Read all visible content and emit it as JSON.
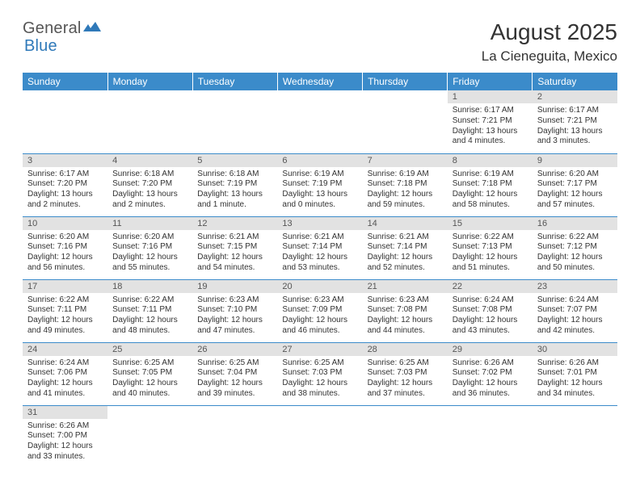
{
  "logo": {
    "text1": "General",
    "text2": "Blue"
  },
  "header": {
    "title": "August 2025",
    "location": "La Cieneguita, Mexico"
  },
  "colors": {
    "header_bg": "#3b8bca",
    "header_text": "#ffffff",
    "daynum_bg": "#e2e2e2",
    "border": "#3b8bca",
    "body_text": "#333333"
  },
  "style": {
    "title_fontsize": 28,
    "location_fontsize": 17,
    "header_fontsize": 12,
    "daynum_fontsize": 11,
    "body_fontsize": 10
  },
  "days_of_week": [
    "Sunday",
    "Monday",
    "Tuesday",
    "Wednesday",
    "Thursday",
    "Friday",
    "Saturday"
  ],
  "weeks": [
    [
      {
        "empty": true
      },
      {
        "empty": true
      },
      {
        "empty": true
      },
      {
        "empty": true
      },
      {
        "empty": true
      },
      {
        "num": "1",
        "sunrise": "Sunrise: 6:17 AM",
        "sunset": "Sunset: 7:21 PM",
        "daylight": "Daylight: 13 hours and 4 minutes."
      },
      {
        "num": "2",
        "sunrise": "Sunrise: 6:17 AM",
        "sunset": "Sunset: 7:21 PM",
        "daylight": "Daylight: 13 hours and 3 minutes."
      }
    ],
    [
      {
        "num": "3",
        "sunrise": "Sunrise: 6:17 AM",
        "sunset": "Sunset: 7:20 PM",
        "daylight": "Daylight: 13 hours and 2 minutes."
      },
      {
        "num": "4",
        "sunrise": "Sunrise: 6:18 AM",
        "sunset": "Sunset: 7:20 PM",
        "daylight": "Daylight: 13 hours and 2 minutes."
      },
      {
        "num": "5",
        "sunrise": "Sunrise: 6:18 AM",
        "sunset": "Sunset: 7:19 PM",
        "daylight": "Daylight: 13 hours and 1 minute."
      },
      {
        "num": "6",
        "sunrise": "Sunrise: 6:19 AM",
        "sunset": "Sunset: 7:19 PM",
        "daylight": "Daylight: 13 hours and 0 minutes."
      },
      {
        "num": "7",
        "sunrise": "Sunrise: 6:19 AM",
        "sunset": "Sunset: 7:18 PM",
        "daylight": "Daylight: 12 hours and 59 minutes."
      },
      {
        "num": "8",
        "sunrise": "Sunrise: 6:19 AM",
        "sunset": "Sunset: 7:18 PM",
        "daylight": "Daylight: 12 hours and 58 minutes."
      },
      {
        "num": "9",
        "sunrise": "Sunrise: 6:20 AM",
        "sunset": "Sunset: 7:17 PM",
        "daylight": "Daylight: 12 hours and 57 minutes."
      }
    ],
    [
      {
        "num": "10",
        "sunrise": "Sunrise: 6:20 AM",
        "sunset": "Sunset: 7:16 PM",
        "daylight": "Daylight: 12 hours and 56 minutes."
      },
      {
        "num": "11",
        "sunrise": "Sunrise: 6:20 AM",
        "sunset": "Sunset: 7:16 PM",
        "daylight": "Daylight: 12 hours and 55 minutes."
      },
      {
        "num": "12",
        "sunrise": "Sunrise: 6:21 AM",
        "sunset": "Sunset: 7:15 PM",
        "daylight": "Daylight: 12 hours and 54 minutes."
      },
      {
        "num": "13",
        "sunrise": "Sunrise: 6:21 AM",
        "sunset": "Sunset: 7:14 PM",
        "daylight": "Daylight: 12 hours and 53 minutes."
      },
      {
        "num": "14",
        "sunrise": "Sunrise: 6:21 AM",
        "sunset": "Sunset: 7:14 PM",
        "daylight": "Daylight: 12 hours and 52 minutes."
      },
      {
        "num": "15",
        "sunrise": "Sunrise: 6:22 AM",
        "sunset": "Sunset: 7:13 PM",
        "daylight": "Daylight: 12 hours and 51 minutes."
      },
      {
        "num": "16",
        "sunrise": "Sunrise: 6:22 AM",
        "sunset": "Sunset: 7:12 PM",
        "daylight": "Daylight: 12 hours and 50 minutes."
      }
    ],
    [
      {
        "num": "17",
        "sunrise": "Sunrise: 6:22 AM",
        "sunset": "Sunset: 7:11 PM",
        "daylight": "Daylight: 12 hours and 49 minutes."
      },
      {
        "num": "18",
        "sunrise": "Sunrise: 6:22 AM",
        "sunset": "Sunset: 7:11 PM",
        "daylight": "Daylight: 12 hours and 48 minutes."
      },
      {
        "num": "19",
        "sunrise": "Sunrise: 6:23 AM",
        "sunset": "Sunset: 7:10 PM",
        "daylight": "Daylight: 12 hours and 47 minutes."
      },
      {
        "num": "20",
        "sunrise": "Sunrise: 6:23 AM",
        "sunset": "Sunset: 7:09 PM",
        "daylight": "Daylight: 12 hours and 46 minutes."
      },
      {
        "num": "21",
        "sunrise": "Sunrise: 6:23 AM",
        "sunset": "Sunset: 7:08 PM",
        "daylight": "Daylight: 12 hours and 44 minutes."
      },
      {
        "num": "22",
        "sunrise": "Sunrise: 6:24 AM",
        "sunset": "Sunset: 7:08 PM",
        "daylight": "Daylight: 12 hours and 43 minutes."
      },
      {
        "num": "23",
        "sunrise": "Sunrise: 6:24 AM",
        "sunset": "Sunset: 7:07 PM",
        "daylight": "Daylight: 12 hours and 42 minutes."
      }
    ],
    [
      {
        "num": "24",
        "sunrise": "Sunrise: 6:24 AM",
        "sunset": "Sunset: 7:06 PM",
        "daylight": "Daylight: 12 hours and 41 minutes."
      },
      {
        "num": "25",
        "sunrise": "Sunrise: 6:25 AM",
        "sunset": "Sunset: 7:05 PM",
        "daylight": "Daylight: 12 hours and 40 minutes."
      },
      {
        "num": "26",
        "sunrise": "Sunrise: 6:25 AM",
        "sunset": "Sunset: 7:04 PM",
        "daylight": "Daylight: 12 hours and 39 minutes."
      },
      {
        "num": "27",
        "sunrise": "Sunrise: 6:25 AM",
        "sunset": "Sunset: 7:03 PM",
        "daylight": "Daylight: 12 hours and 38 minutes."
      },
      {
        "num": "28",
        "sunrise": "Sunrise: 6:25 AM",
        "sunset": "Sunset: 7:03 PM",
        "daylight": "Daylight: 12 hours and 37 minutes."
      },
      {
        "num": "29",
        "sunrise": "Sunrise: 6:26 AM",
        "sunset": "Sunset: 7:02 PM",
        "daylight": "Daylight: 12 hours and 36 minutes."
      },
      {
        "num": "30",
        "sunrise": "Sunrise: 6:26 AM",
        "sunset": "Sunset: 7:01 PM",
        "daylight": "Daylight: 12 hours and 34 minutes."
      }
    ],
    [
      {
        "num": "31",
        "sunrise": "Sunrise: 6:26 AM",
        "sunset": "Sunset: 7:00 PM",
        "daylight": "Daylight: 12 hours and 33 minutes."
      },
      {
        "empty": true
      },
      {
        "empty": true
      },
      {
        "empty": true
      },
      {
        "empty": true
      },
      {
        "empty": true
      },
      {
        "empty": true
      }
    ]
  ]
}
